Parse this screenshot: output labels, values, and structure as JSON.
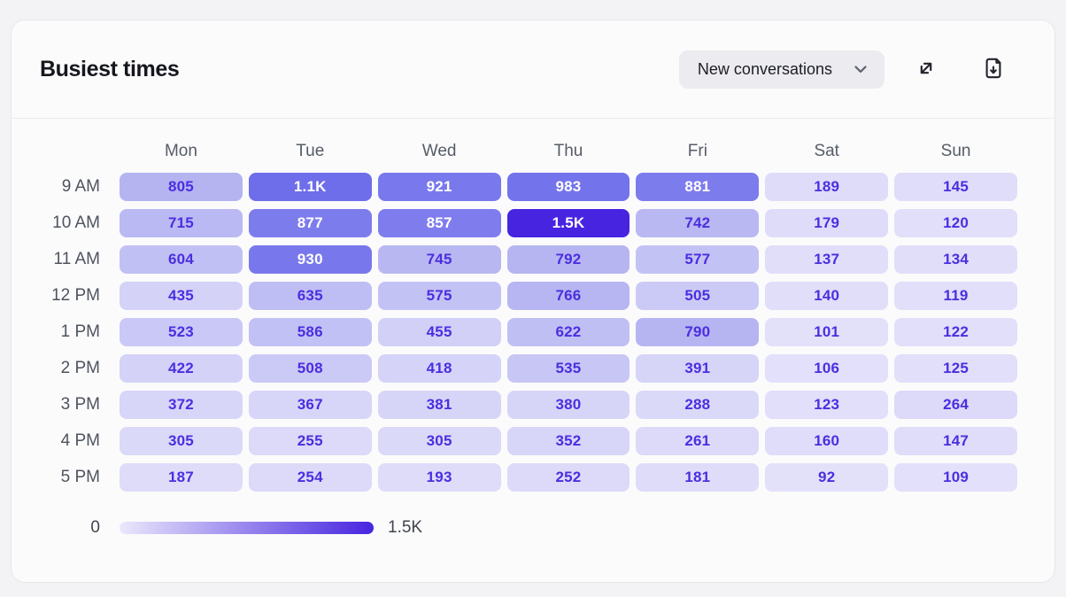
{
  "card": {
    "title": "Busiest times"
  },
  "toolbar": {
    "metric_select": {
      "value": "New conversations",
      "icon": "chevron-down-icon"
    },
    "expand_button": {
      "icon": "expand-diagonal-icon"
    },
    "download_button": {
      "icon": "download-file-icon"
    }
  },
  "colors": {
    "scale_min": "#eae8fb",
    "scale_max": "#4724e0",
    "cell_text_dark": "#4b2ee0",
    "cell_text_light": "#ffffff",
    "label_gray": "#565c66"
  },
  "chart_data": {
    "type": "heatmap",
    "title": "Busiest times",
    "metric": "New conversations",
    "columns": [
      "Mon",
      "Tue",
      "Wed",
      "Thu",
      "Fri",
      "Sat",
      "Sun"
    ],
    "rows": [
      "9 AM",
      "10 AM",
      "11 AM",
      "12 PM",
      "1 PM",
      "2 PM",
      "3 PM",
      "4 PM",
      "5 PM"
    ],
    "values": [
      [
        805,
        1100,
        921,
        983,
        881,
        189,
        145
      ],
      [
        715,
        877,
        857,
        1500,
        742,
        179,
        120
      ],
      [
        604,
        930,
        745,
        792,
        577,
        137,
        134
      ],
      [
        435,
        635,
        575,
        766,
        505,
        140,
        119
      ],
      [
        523,
        586,
        455,
        622,
        790,
        101,
        122
      ],
      [
        422,
        508,
        418,
        535,
        391,
        106,
        125
      ],
      [
        372,
        367,
        381,
        380,
        288,
        123,
        264
      ],
      [
        305,
        255,
        305,
        352,
        261,
        160,
        147
      ],
      [
        187,
        254,
        193,
        252,
        181,
        92,
        109
      ]
    ],
    "labels": [
      [
        "805",
        "1.1K",
        "921",
        "983",
        "881",
        "189",
        "145"
      ],
      [
        "715",
        "877",
        "857",
        "1.5K",
        "742",
        "179",
        "120"
      ],
      [
        "604",
        "930",
        "745",
        "792",
        "577",
        "137",
        "134"
      ],
      [
        "435",
        "635",
        "575",
        "766",
        "505",
        "140",
        "119"
      ],
      [
        "523",
        "586",
        "455",
        "622",
        "790",
        "101",
        "122"
      ],
      [
        "422",
        "508",
        "418",
        "535",
        "391",
        "106",
        "125"
      ],
      [
        "372",
        "367",
        "381",
        "380",
        "288",
        "123",
        "264"
      ],
      [
        "305",
        "255",
        "305",
        "352",
        "261",
        "160",
        "147"
      ],
      [
        "187",
        "254",
        "193",
        "252",
        "181",
        "92",
        "109"
      ]
    ],
    "legend": {
      "min": 0,
      "max": 1500,
      "min_label": "0",
      "max_label": "1.5K"
    }
  }
}
